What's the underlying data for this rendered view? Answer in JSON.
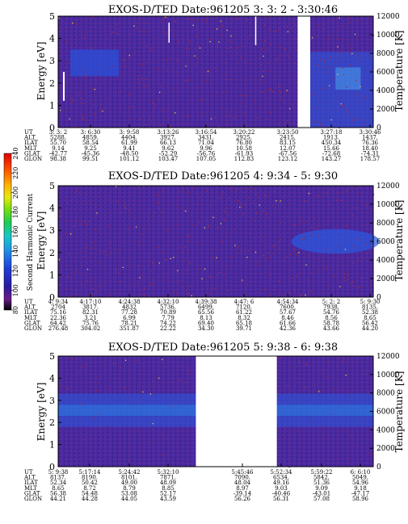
{
  "chart_data": [
    {
      "type": "heatmap",
      "title": "EXOS-D/TED   Date:961205  3: 3: 2 - 3:30:46",
      "ylabel": "Energy [eV]",
      "y2label": "Temperature [K]",
      "ylim": [
        0,
        5
      ],
      "y2lim": [
        0,
        12000
      ],
      "yticks": [
        "0",
        "1",
        "2",
        "3",
        "4",
        "5"
      ],
      "y2ticks": [
        "0",
        "2000",
        "4000",
        "6000",
        "8000",
        "10000",
        "12000"
      ],
      "row_labels": [
        "UT",
        "ALT",
        "ILAT",
        "MLT",
        "GLAT",
        "GLON"
      ],
      "columns": [
        [
          "3: 3: 2",
          "5288.",
          "55.70",
          "9.14",
          "-42.77",
          "98.38"
        ],
        [
          "3: 6:30",
          "4859.",
          "58.54",
          "9.25",
          "-45.36",
          "99.51"
        ],
        [
          "3: 9:58",
          "4404.",
          "61.99",
          "9.41",
          "-48.50",
          "101.12"
        ],
        [
          "3:13:26",
          "3927.",
          "66.13",
          "9.62",
          "-52.29",
          "103.47"
        ],
        [
          "3:16:54",
          "3431.",
          "71.04",
          "9.96",
          "-56.76",
          "107.05"
        ],
        [
          "3:20:22",
          "2925.",
          "76.80",
          "10.58",
          "-61.93",
          "112.83"
        ],
        [
          "3:23:50",
          "2415.",
          "83.15",
          "12.07",
          "-67.56",
          "123.12"
        ],
        [
          "3:27:18",
          "1913.",
          "450.34",
          "15.66",
          "-72.68",
          "143.27"
        ],
        [
          "3:30:46",
          "1437.",
          "76.36",
          "18.40",
          "-74.31",
          "178.57"
        ]
      ],
      "gaps": [
        [
          0.76,
          0.8
        ]
      ]
    },
    {
      "type": "heatmap",
      "title": "EXOS-D/TED   Date:961205  4: 9:34 - 5: 9:30",
      "ylabel": "Energy [eV]",
      "y2label": "Temperature [K]",
      "ylim": [
        0,
        5
      ],
      "y2lim": [
        0,
        12000
      ],
      "yticks": [
        "0",
        "1",
        "2",
        "3",
        "4",
        "5"
      ],
      "y2ticks": [
        "0",
        "2000",
        "4000",
        "6000",
        "8000",
        "10000",
        "12000"
      ],
      "row_labels": [
        "UT",
        "ALT",
        "ILAT",
        "MLT",
        "GLAT",
        "GLON"
      ],
      "columns": [
        [
          "4: 9:34",
          "2704",
          "75.16",
          "22.36",
          "64.42",
          "276.48"
        ],
        [
          "4:17:10",
          "3817.",
          "82.31",
          "3.21",
          "75.76",
          "304.02"
        ],
        [
          "4:24:38",
          "4832",
          "77.28",
          "6.99",
          "78.21",
          "351.87"
        ],
        [
          "4:32:10",
          "5736.",
          "70.89",
          "7.79",
          "74.22",
          "22.22"
        ],
        [
          "4:39:38",
          "6499.",
          "65.56",
          "8.13",
          "69.40",
          "34.30"
        ],
        [
          "4:47: 6",
          "7120.",
          "61.22",
          "8.32",
          "65.18",
          "39.71"
        ],
        [
          "4:54:34",
          "7600.",
          "57.67",
          "8.46",
          "61.66",
          "42.36"
        ],
        [
          "5: 2: 2",
          "7938.",
          "54.76",
          "8.56",
          "58.78",
          "43.66"
        ],
        [
          "5: 9:30",
          "8135.",
          "52.38",
          "8.65",
          "56.42",
          "44.20"
        ]
      ],
      "gaps": []
    },
    {
      "type": "heatmap",
      "title": "EXOS-D/TED   Date:961205  5: 9:38 - 6: 9:38",
      "ylabel": "Energy [eV]",
      "y2label": "Temperature [K]",
      "ylim": [
        0,
        5
      ],
      "y2lim": [
        0,
        12000
      ],
      "yticks": [
        "0",
        "1",
        "2",
        "3",
        "4",
        "5"
      ],
      "y2ticks": [
        "0",
        "2000",
        "4000",
        "6000",
        "8000",
        "10000",
        "12000"
      ],
      "row_labels": [
        "UT",
        "ALT",
        "ILAT",
        "MLT",
        "GLAT",
        "GLON"
      ],
      "columns": [
        [
          "5: 9:38",
          "8137.",
          "52.34",
          "8.65",
          "56.38",
          "44.21"
        ],
        [
          "5:17:14",
          "8190.",
          "50.42",
          "8.72",
          "54.48",
          "44.28"
        ],
        [
          "5:24:42",
          "8101.",
          "49.00",
          "8.79",
          "53.08",
          "44.05"
        ],
        [
          "5:32:10",
          "7871.",
          "48.09",
          "8.85",
          "52.17",
          "43.59"
        ],
        [
          "5:45:46",
          "7090.",
          "48.04",
          "8.97",
          "-39.14",
          "56.26"
        ],
        [
          "5:52:34",
          "6534.",
          "49.16",
          "9.03",
          "-40.46",
          "56.31"
        ],
        [
          "5:59:22",
          "5842.",
          "51.36",
          "9.09",
          "-43.01",
          "57.08"
        ],
        [
          "6: 6:10",
          "5049.",
          "54.96",
          "9.18",
          "-47.17",
          "58.96"
        ]
      ],
      "gaps": [
        [
          0.437,
          0.694
        ]
      ]
    }
  ],
  "colorbar": {
    "label": "Second Harmonic Current",
    "ticks": [
      "80",
      "100",
      "120",
      "140",
      "160",
      "180",
      "200",
      "220",
      "240"
    ],
    "colors": [
      "#000000",
      "#7a1a9a",
      "#3a2aa8",
      "#1e3ad0",
      "#1e6ae6",
      "#1ea0e6",
      "#16c8d0",
      "#1ecc60",
      "#50e010",
      "#c8e010",
      "#fff000",
      "#ffb000",
      "#ff7000",
      "#ff2000",
      "#e00000"
    ]
  },
  "colors": {
    "background": "#4a2aa0",
    "grid_dots": "#c84040",
    "enhanced": "#2a5ae0",
    "enhanced_bright": "#4aa8f0"
  }
}
